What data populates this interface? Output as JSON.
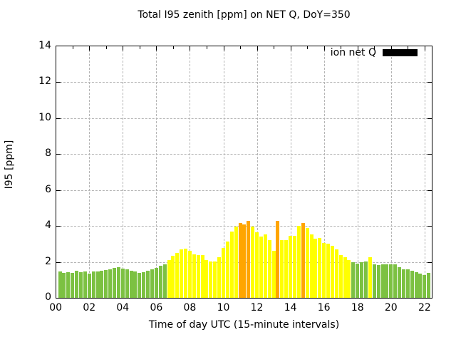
{
  "title": "Total I95 zenith [ppm] on NET Q, DoY=350",
  "axes": {
    "xlabel": "Time of day UTC (15-minute intervals)",
    "ylabel": "I95 [ppm]",
    "x_tick_labels": [
      "00",
      "02",
      "04",
      "06",
      "08",
      "10",
      "12",
      "14",
      "16",
      "18",
      "20",
      "22"
    ],
    "y_tick_labels": [
      "0",
      "2",
      "4",
      "6",
      "8",
      "10",
      "12",
      "14"
    ]
  },
  "legend": {
    "label": "ion net Q",
    "swatch_color": "#000000"
  },
  "colors": {
    "g": "#7cc142",
    "y": "#ffff00",
    "o": "#ffa500",
    "grid": "#b4b4b4",
    "axis": "#000000"
  },
  "chart_data": {
    "type": "bar",
    "title": "Total I95 zenith [ppm] on NET Q, DoY=350",
    "xlabel": "Time of day UTC (15-minute intervals)",
    "ylabel": "I95 [ppm]",
    "ylim": [
      0,
      14
    ],
    "xlim_hours": [
      0,
      22.5
    ],
    "interval_minutes": 15,
    "grid": true,
    "legend_position": "top-right-inside",
    "legend_entries": [
      "ion net Q"
    ],
    "color_meaning": {
      "g": "green low level",
      "y": "yellow elevated",
      "o": "orange peak"
    },
    "series": [
      {
        "name": "ion net Q",
        "points": [
          {
            "t": "00:15",
            "v": 1.45,
            "c": "g"
          },
          {
            "t": "00:30",
            "v": 1.4,
            "c": "g"
          },
          {
            "t": "00:45",
            "v": 1.42,
            "c": "g"
          },
          {
            "t": "01:00",
            "v": 1.4,
            "c": "g"
          },
          {
            "t": "01:15",
            "v": 1.5,
            "c": "g"
          },
          {
            "t": "01:30",
            "v": 1.42,
            "c": "g"
          },
          {
            "t": "01:45",
            "v": 1.45,
            "c": "g"
          },
          {
            "t": "02:00",
            "v": 1.36,
            "c": "g"
          },
          {
            "t": "02:15",
            "v": 1.48,
            "c": "g"
          },
          {
            "t": "02:30",
            "v": 1.45,
            "c": "g"
          },
          {
            "t": "02:45",
            "v": 1.52,
            "c": "g"
          },
          {
            "t": "03:00",
            "v": 1.56,
            "c": "g"
          },
          {
            "t": "03:15",
            "v": 1.6,
            "c": "g"
          },
          {
            "t": "03:30",
            "v": 1.66,
            "c": "g"
          },
          {
            "t": "03:45",
            "v": 1.72,
            "c": "g"
          },
          {
            "t": "04:00",
            "v": 1.63,
            "c": "g"
          },
          {
            "t": "04:15",
            "v": 1.57,
            "c": "g"
          },
          {
            "t": "04:30",
            "v": 1.52,
            "c": "g"
          },
          {
            "t": "04:45",
            "v": 1.45,
            "c": "g"
          },
          {
            "t": "05:00",
            "v": 1.4,
            "c": "g"
          },
          {
            "t": "05:15",
            "v": 1.42,
            "c": "g"
          },
          {
            "t": "05:30",
            "v": 1.5,
            "c": "g"
          },
          {
            "t": "05:45",
            "v": 1.57,
            "c": "g"
          },
          {
            "t": "06:00",
            "v": 1.65,
            "c": "g"
          },
          {
            "t": "06:15",
            "v": 1.8,
            "c": "g"
          },
          {
            "t": "06:30",
            "v": 1.85,
            "c": "g"
          },
          {
            "t": "06:45",
            "v": 2.1,
            "c": "y"
          },
          {
            "t": "07:00",
            "v": 2.35,
            "c": "y"
          },
          {
            "t": "07:15",
            "v": 2.5,
            "c": "y"
          },
          {
            "t": "07:30",
            "v": 2.7,
            "c": "y"
          },
          {
            "t": "07:45",
            "v": 2.75,
            "c": "y"
          },
          {
            "t": "08:00",
            "v": 2.6,
            "c": "y"
          },
          {
            "t": "08:15",
            "v": 2.42,
            "c": "y"
          },
          {
            "t": "08:30",
            "v": 2.4,
            "c": "y"
          },
          {
            "t": "08:45",
            "v": 2.4,
            "c": "y"
          },
          {
            "t": "09:00",
            "v": 2.12,
            "c": "y"
          },
          {
            "t": "09:15",
            "v": 2.01,
            "c": "y"
          },
          {
            "t": "09:30",
            "v": 2.03,
            "c": "y"
          },
          {
            "t": "09:45",
            "v": 2.28,
            "c": "y"
          },
          {
            "t": "10:00",
            "v": 2.78,
            "c": "y"
          },
          {
            "t": "10:15",
            "v": 3.13,
            "c": "y"
          },
          {
            "t": "10:30",
            "v": 3.68,
            "c": "y"
          },
          {
            "t": "10:45",
            "v": 3.95,
            "c": "y"
          },
          {
            "t": "11:00",
            "v": 4.15,
            "c": "o"
          },
          {
            "t": "11:15",
            "v": 4.08,
            "c": "o"
          },
          {
            "t": "11:30",
            "v": 4.27,
            "c": "o"
          },
          {
            "t": "11:45",
            "v": 3.98,
            "c": "y"
          },
          {
            "t": "12:00",
            "v": 3.66,
            "c": "y"
          },
          {
            "t": "12:15",
            "v": 3.43,
            "c": "y"
          },
          {
            "t": "12:30",
            "v": 3.52,
            "c": "y"
          },
          {
            "t": "12:45",
            "v": 3.22,
            "c": "y"
          },
          {
            "t": "13:00",
            "v": 2.6,
            "c": "y"
          },
          {
            "t": "13:15",
            "v": 4.3,
            "c": "o"
          },
          {
            "t": "13:30",
            "v": 3.22,
            "c": "y"
          },
          {
            "t": "13:45",
            "v": 3.22,
            "c": "y"
          },
          {
            "t": "14:00",
            "v": 3.44,
            "c": "y"
          },
          {
            "t": "14:15",
            "v": 3.44,
            "c": "y"
          },
          {
            "t": "14:30",
            "v": 4.01,
            "c": "y"
          },
          {
            "t": "14:45",
            "v": 4.16,
            "c": "o"
          },
          {
            "t": "15:00",
            "v": 3.88,
            "c": "y"
          },
          {
            "t": "15:15",
            "v": 3.55,
            "c": "y"
          },
          {
            "t": "15:30",
            "v": 3.3,
            "c": "y"
          },
          {
            "t": "15:45",
            "v": 3.35,
            "c": "y"
          },
          {
            "t": "16:00",
            "v": 3.05,
            "c": "y"
          },
          {
            "t": "16:15",
            "v": 3.0,
            "c": "y"
          },
          {
            "t": "16:30",
            "v": 2.9,
            "c": "y"
          },
          {
            "t": "16:45",
            "v": 2.7,
            "c": "y"
          },
          {
            "t": "17:00",
            "v": 2.4,
            "c": "y"
          },
          {
            "t": "17:15",
            "v": 2.25,
            "c": "y"
          },
          {
            "t": "17:30",
            "v": 2.1,
            "c": "y"
          },
          {
            "t": "17:45",
            "v": 1.97,
            "c": "g"
          },
          {
            "t": "18:00",
            "v": 1.89,
            "c": "g"
          },
          {
            "t": "18:15",
            "v": 1.99,
            "c": "g"
          },
          {
            "t": "18:30",
            "v": 2.03,
            "c": "g"
          },
          {
            "t": "18:45",
            "v": 2.25,
            "c": "y"
          },
          {
            "t": "19:00",
            "v": 1.87,
            "c": "g"
          },
          {
            "t": "19:15",
            "v": 1.81,
            "c": "g"
          },
          {
            "t": "19:30",
            "v": 1.85,
            "c": "g"
          },
          {
            "t": "19:45",
            "v": 1.85,
            "c": "g"
          },
          {
            "t": "20:00",
            "v": 1.87,
            "c": "g"
          },
          {
            "t": "20:15",
            "v": 1.87,
            "c": "g"
          },
          {
            "t": "20:30",
            "v": 1.7,
            "c": "g"
          },
          {
            "t": "20:45",
            "v": 1.6,
            "c": "g"
          },
          {
            "t": "21:00",
            "v": 1.57,
            "c": "g"
          },
          {
            "t": "21:15",
            "v": 1.52,
            "c": "g"
          },
          {
            "t": "21:30",
            "v": 1.44,
            "c": "g"
          },
          {
            "t": "21:45",
            "v": 1.33,
            "c": "g"
          },
          {
            "t": "22:00",
            "v": 1.28,
            "c": "g"
          },
          {
            "t": "22:15",
            "v": 1.38,
            "c": "g"
          }
        ]
      }
    ]
  }
}
